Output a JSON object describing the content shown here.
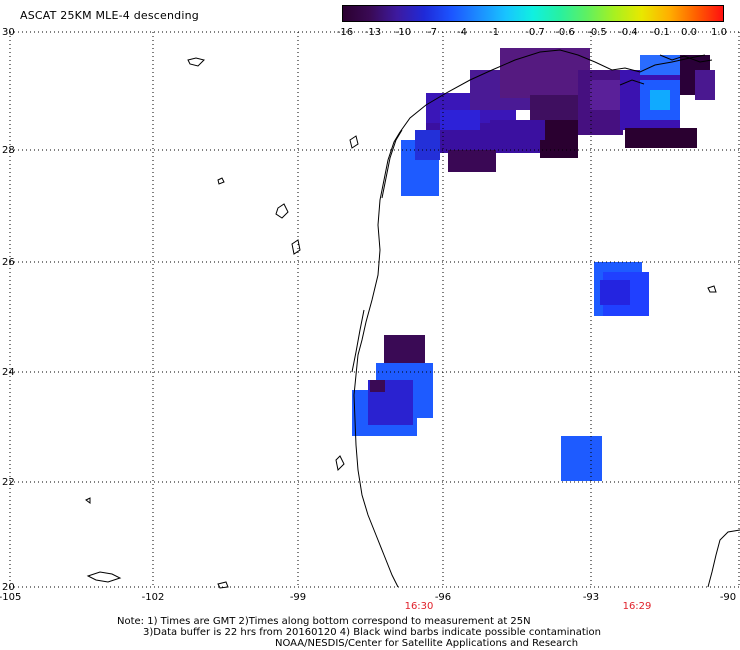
{
  "title": "ASCAT 25KM MLE-4 descending",
  "colorbar": {
    "labels": [
      "-16",
      "-13",
      "-10",
      "-7",
      "-4",
      "-1",
      "-0.7",
      "-0.6",
      "-0.5",
      "-0.4",
      "-0.1",
      "0.0",
      "1.0"
    ],
    "colors": [
      "#2b0030",
      "#3a0a55",
      "#3d1aa0",
      "#1f2ad8",
      "#1c55ff",
      "#1c8cff",
      "#18c4ff",
      "#10f0e0",
      "#28f0a0",
      "#60f060",
      "#a8f020",
      "#e8e800",
      "#ffb000",
      "#ff6000",
      "#ff1010"
    ]
  },
  "axes": {
    "lat_labels": [
      "30",
      "28",
      "26",
      "24",
      "22",
      "20"
    ],
    "lon_labels": [
      "-105",
      "-102",
      "-99",
      "-96",
      "-93",
      "-90"
    ]
  },
  "times": [
    "16:30",
    "16:29"
  ],
  "notes": {
    "line1": "Note: 1) Times are GMT 2)Times along bottom correspond to measurement at 25N",
    "line2": "3)Data buffer is 22 hrs from 20160120 4) Black wind barbs indicate possible contamination",
    "line3": "NOAA/NESDIS/Center for Satellite Applications and Research"
  },
  "colors": {
    "grid": "#000000",
    "coast": "#000000",
    "time_label": "#e0202a"
  }
}
